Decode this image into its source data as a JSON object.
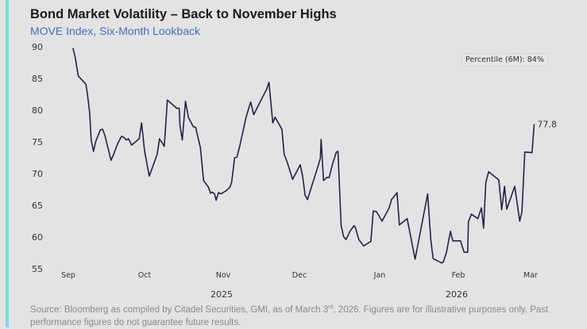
{
  "header": {
    "title": "Bond Market Volatility – Back to November Highs",
    "subtitle": "MOVE Index, Six-Month Lookback"
  },
  "annotation": {
    "percentile": "Percentile (6M): 84%"
  },
  "footer": {
    "source_pre": "Source: Bloomberg as compiled by Citadel Securities, GMI, as of March 3",
    "source_sup": "rd",
    "source_post": ", 2026. Figures are for illustrative purposes only. Past performance figures do not guarantee future results."
  },
  "colors": {
    "line": "#23214f",
    "accent_bar": "#6fe3de",
    "subtitle": "#3b6fcf"
  },
  "chart_data": {
    "type": "line",
    "title": "Bond Market Volatility – Back to November Highs",
    "subtitle": "MOVE Index, Six-Month Lookback",
    "xlabel": "",
    "ylabel": "",
    "ylim": [
      55,
      90
    ],
    "yticks": [
      55,
      60,
      65,
      70,
      75,
      80,
      85,
      90
    ],
    "x_unit": "months since Sep 1, 2025",
    "xticks": [
      {
        "t": 0,
        "label": "Sep"
      },
      {
        "t": 1,
        "label": "Oct"
      },
      {
        "t": 2,
        "label": "Nov"
      },
      {
        "t": 3,
        "label": "Dec"
      },
      {
        "t": 4,
        "label": "Jan"
      },
      {
        "t": 5,
        "label": "Feb"
      },
      {
        "t": 6,
        "label": "Mar"
      }
    ],
    "year_labels": [
      {
        "t": 2,
        "label": "2025"
      },
      {
        "t": 5,
        "label": "2026"
      }
    ],
    "grid": false,
    "legend": "none",
    "end_label": "77.8",
    "series": [
      {
        "name": "MOVE Index",
        "points": [
          [
            0.06,
            89.8
          ],
          [
            0.09,
            88.4
          ],
          [
            0.13,
            85.4
          ],
          [
            0.23,
            84.1
          ],
          [
            0.25,
            82.6
          ],
          [
            0.28,
            79.6
          ],
          [
            0.3,
            75.3
          ],
          [
            0.33,
            73.5
          ],
          [
            0.36,
            75.1
          ],
          [
            0.42,
            76.9
          ],
          [
            0.45,
            77.0
          ],
          [
            0.48,
            76.0
          ],
          [
            0.56,
            72.1
          ],
          [
            0.59,
            72.9
          ],
          [
            0.65,
            74.8
          ],
          [
            0.7,
            75.9
          ],
          [
            0.74,
            75.6
          ],
          [
            0.76,
            75.3
          ],
          [
            0.79,
            75.5
          ],
          [
            0.83,
            74.5
          ],
          [
            0.93,
            75.5
          ],
          [
            0.96,
            78.0
          ],
          [
            1.0,
            73.6
          ],
          [
            1.06,
            69.6
          ],
          [
            1.16,
            73.0
          ],
          [
            1.19,
            75.5
          ],
          [
            1.25,
            74.3
          ],
          [
            1.29,
            81.6
          ],
          [
            1.41,
            80.3
          ],
          [
            1.44,
            80.3
          ],
          [
            1.45,
            77.6
          ],
          [
            1.48,
            75.3
          ],
          [
            1.52,
            81.4
          ],
          [
            1.56,
            78.8
          ],
          [
            1.62,
            77.4
          ],
          [
            1.65,
            77.3
          ],
          [
            1.71,
            74.1
          ],
          [
            1.75,
            68.9
          ],
          [
            1.81,
            67.9
          ],
          [
            1.84,
            66.9
          ],
          [
            1.86,
            67.1
          ],
          [
            1.89,
            66.8
          ],
          [
            1.91,
            65.8
          ],
          [
            1.94,
            67.0
          ],
          [
            1.97,
            66.8
          ],
          [
            2.04,
            67.3
          ],
          [
            2.09,
            67.9
          ],
          [
            2.11,
            68.6
          ],
          [
            2.15,
            72.5
          ],
          [
            2.18,
            72.6
          ],
          [
            2.22,
            74.5
          ],
          [
            2.3,
            78.9
          ],
          [
            2.36,
            81.3
          ],
          [
            2.4,
            79.3
          ],
          [
            2.54,
            82.6
          ],
          [
            2.57,
            83.3
          ],
          [
            2.6,
            84.4
          ],
          [
            2.65,
            78.0
          ],
          [
            2.68,
            78.9
          ],
          [
            2.77,
            77.0
          ],
          [
            2.8,
            73.0
          ],
          [
            2.84,
            71.8
          ],
          [
            2.91,
            69.1
          ],
          [
            3.01,
            71.4
          ],
          [
            3.04,
            69.6
          ],
          [
            3.07,
            66.6
          ],
          [
            3.1,
            65.9
          ],
          [
            3.15,
            67.9
          ],
          [
            3.23,
            71.1
          ],
          [
            3.26,
            72.4
          ],
          [
            3.27,
            75.4
          ],
          [
            3.3,
            68.9
          ],
          [
            3.34,
            69.4
          ],
          [
            3.37,
            69.4
          ],
          [
            3.41,
            71.4
          ],
          [
            3.46,
            73.4
          ],
          [
            3.48,
            73.5
          ],
          [
            3.52,
            61.8
          ],
          [
            3.55,
            60.1
          ],
          [
            3.58,
            59.6
          ],
          [
            3.63,
            60.9
          ],
          [
            3.68,
            61.8
          ],
          [
            3.7,
            61.4
          ],
          [
            3.74,
            59.6
          ],
          [
            3.8,
            58.6
          ],
          [
            3.89,
            59.3
          ],
          [
            3.92,
            64.1
          ],
          [
            3.96,
            64.0
          ],
          [
            4.03,
            62.5
          ],
          [
            4.12,
            64.6
          ],
          [
            4.15,
            65.9
          ],
          [
            4.19,
            66.5
          ],
          [
            4.22,
            67.0
          ],
          [
            4.25,
            61.9
          ],
          [
            4.35,
            62.9
          ],
          [
            4.45,
            56.5
          ],
          [
            4.61,
            66.8
          ],
          [
            4.65,
            59.5
          ],
          [
            4.68,
            56.6
          ],
          [
            4.79,
            55.9
          ],
          [
            4.81,
            56.1
          ],
          [
            4.85,
            57.6
          ],
          [
            4.9,
            60.9
          ],
          [
            4.93,
            59.4
          ],
          [
            5.03,
            59.4
          ],
          [
            5.08,
            57.6
          ],
          [
            5.13,
            57.6
          ],
          [
            5.14,
            62.4
          ],
          [
            5.18,
            63.6
          ],
          [
            5.27,
            62.9
          ],
          [
            5.32,
            64.6
          ],
          [
            5.35,
            61.4
          ],
          [
            5.38,
            68.6
          ],
          [
            5.42,
            70.3
          ],
          [
            5.56,
            69.0
          ],
          [
            5.6,
            64.3
          ],
          [
            5.64,
            68.0
          ],
          [
            5.67,
            64.4
          ],
          [
            5.78,
            68.0
          ],
          [
            5.85,
            62.5
          ],
          [
            5.88,
            64.0
          ],
          [
            5.92,
            73.4
          ],
          [
            6.02,
            73.3
          ],
          [
            6.05,
            77.8
          ]
        ]
      }
    ]
  }
}
